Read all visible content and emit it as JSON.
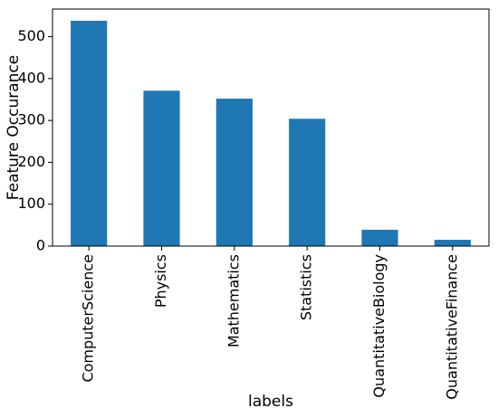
{
  "chart_data": {
    "type": "bar",
    "title": "",
    "xlabel": "labels",
    "ylabel": "Feature Occurance",
    "categories": [
      "ComputerScience",
      "Physics",
      "Mathematics",
      "Statistics",
      "QuantitativeBiology",
      "QuantitativeFinance"
    ],
    "values": [
      538,
      371,
      352,
      304,
      39,
      15
    ],
    "ylim": [
      0,
      566
    ],
    "yticks": [
      0,
      100,
      200,
      300,
      400,
      500
    ],
    "grid": false,
    "legend": "none",
    "colors": {
      "bar": "#1f77b4",
      "axis": "#000000"
    }
  }
}
